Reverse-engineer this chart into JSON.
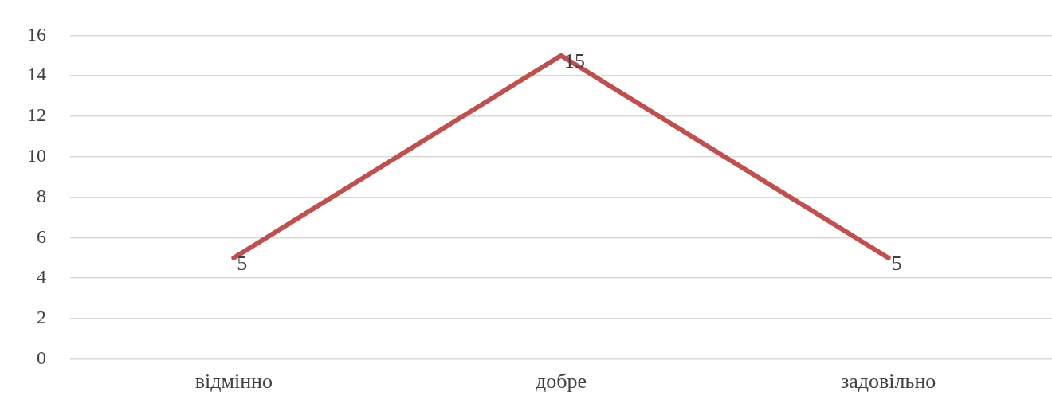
{
  "chart_data": {
    "type": "line",
    "categories": [
      "відмінно",
      "добре",
      "задовільно"
    ],
    "series": [
      {
        "color": "#c0504d",
        "values": [
          5,
          15,
          5
        ]
      }
    ],
    "ylim": [
      0,
      16
    ],
    "yticks": [
      0,
      2,
      4,
      6,
      8,
      10,
      12,
      14,
      16
    ],
    "grid": "y",
    "legend": false,
    "marker": "none",
    "line_style": "solid",
    "data_labels": true
  }
}
